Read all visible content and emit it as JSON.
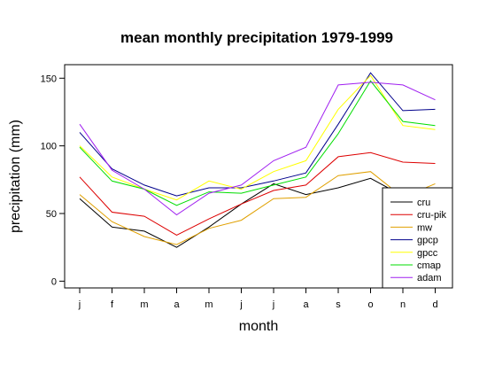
{
  "chart_data": {
    "type": "line",
    "title": "mean monthly precipitation 1979-1999",
    "xlabel": "month",
    "ylabel": "precipitation (mm)",
    "categories": [
      "j",
      "f",
      "m",
      "a",
      "m",
      "j",
      "j",
      "a",
      "s",
      "o",
      "n",
      "d"
    ],
    "ylim": [
      -5,
      160
    ],
    "yticks": [
      0,
      50,
      100,
      150
    ],
    "grid": false,
    "legend_position": "bottom-right",
    "series": [
      {
        "name": "cru",
        "color": "#000000",
        "values": [
          61,
          40,
          37,
          25,
          40,
          57,
          72,
          64,
          69,
          76,
          63,
          64
        ]
      },
      {
        "name": "cru-pik",
        "color": "#dd0000",
        "values": [
          77,
          51,
          48,
          34,
          46,
          57,
          67,
          71,
          92,
          95,
          88,
          87
        ]
      },
      {
        "name": "mw",
        "color": "#e0a000",
        "values": [
          64,
          44,
          33,
          27,
          39,
          45,
          61,
          62,
          78,
          81,
          62,
          72
        ]
      },
      {
        "name": "gpcp",
        "color": "#00008b",
        "values": [
          110,
          83,
          71,
          63,
          69,
          69,
          74,
          80,
          116,
          154,
          126,
          127
        ]
      },
      {
        "name": "gpcc",
        "color": "#ffff00",
        "values": [
          100,
          77,
          68,
          60,
          74,
          68,
          81,
          89,
          127,
          152,
          115,
          112
        ]
      },
      {
        "name": "cmap",
        "color": "#00dd00",
        "values": [
          99,
          74,
          68,
          56,
          66,
          65,
          71,
          77,
          109,
          148,
          118,
          115
        ]
      },
      {
        "name": "adam",
        "color": "#a020f0",
        "values": [
          116,
          82,
          68,
          49,
          65,
          71,
          89,
          99,
          145,
          147,
          145,
          134
        ]
      }
    ]
  }
}
